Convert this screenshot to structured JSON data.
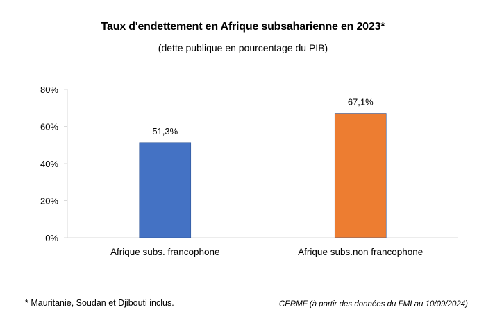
{
  "title": "Taux d'endettement en Afrique subsaharienne en 2023*",
  "subtitle": "(dette publique en pourcentage  du PIB)",
  "footnote": "* Mauritanie, Soudan et Djibouti inclus.",
  "source": "CERMF (à partir des données du FMI au 10/09/2024)",
  "colors": {
    "francophone": "#4472C4",
    "non_francophone": "#ED7D31",
    "axis": "#D9D9D9"
  },
  "chart_data": {
    "type": "bar",
    "title": "Taux d'endettement en Afrique subsaharienne en 2023*",
    "subtitle": "(dette publique en pourcentage  du PIB)",
    "categories": [
      "Afrique subs. francophone",
      "Afrique subs.non  francophone"
    ],
    "values": [
      51.3,
      67.1
    ],
    "value_labels": [
      "51,3%",
      "67,1%"
    ],
    "bar_colors": [
      "#4472C4",
      "#ED7D31"
    ],
    "ylim": [
      0,
      80
    ],
    "yticks": [
      0,
      20,
      40,
      60,
      80
    ],
    "ytick_labels": [
      "0%",
      "20%",
      "40%",
      "60%",
      "80%"
    ],
    "grid": false,
    "legend": "none",
    "xlabel": "",
    "ylabel": ""
  }
}
